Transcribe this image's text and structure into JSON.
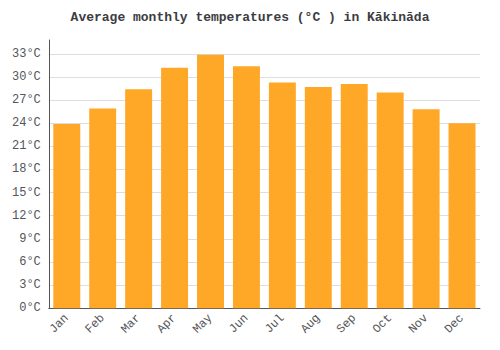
{
  "chart_data": {
    "type": "bar",
    "title": "Average monthly temperatures (°C ) in Kākināda",
    "categories": [
      "Jan",
      "Feb",
      "Mar",
      "Apr",
      "May",
      "Jun",
      "Jul",
      "Aug",
      "Sep",
      "Oct",
      "Nov",
      "Dec"
    ],
    "values": [
      23.9,
      25.9,
      28.4,
      31.2,
      32.9,
      31.4,
      29.3,
      28.7,
      29.1,
      28.0,
      25.8,
      24.0
    ],
    "color": "#FFA726",
    "ylim": [
      0,
      34.8
    ],
    "yticks": [
      {
        "value": 0,
        "label": "0°C"
      },
      {
        "value": 3,
        "label": "3°C"
      },
      {
        "value": 6,
        "label": "6°C"
      },
      {
        "value": 9,
        "label": "9°C"
      },
      {
        "value": 12,
        "label": "12°C"
      },
      {
        "value": 15,
        "label": "15°C"
      },
      {
        "value": 18,
        "label": "18°C"
      },
      {
        "value": 21,
        "label": "21°C"
      },
      {
        "value": 24,
        "label": "24°C"
      },
      {
        "value": 27,
        "label": "27°C"
      },
      {
        "value": 30,
        "label": "30°C"
      },
      {
        "value": 33,
        "label": "33°C"
      }
    ],
    "grid": true
  }
}
